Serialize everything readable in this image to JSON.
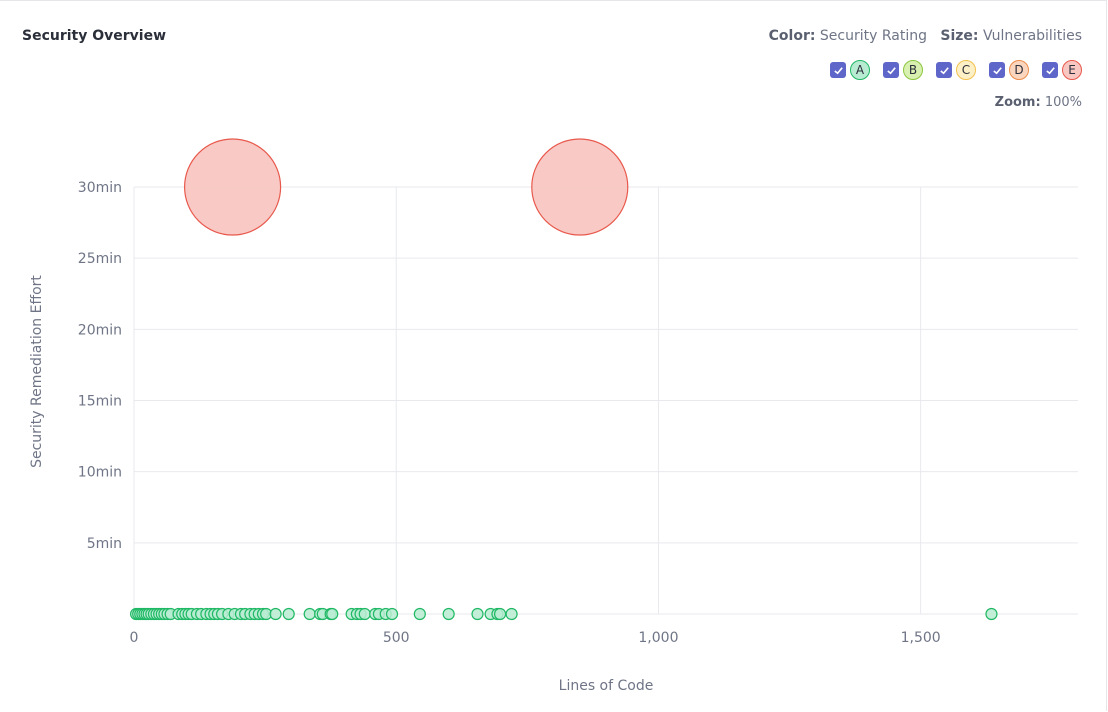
{
  "header": {
    "title": "Security Overview",
    "color_label": "Color:",
    "color_value": "Security Rating",
    "size_label": "Size:",
    "size_value": "Vulnerabilities",
    "zoom_label": "Zoom:",
    "zoom_value": "100%"
  },
  "ratings": [
    {
      "label": "A",
      "checked": true,
      "fill": "#b8ecd2",
      "stroke": "#1fb864"
    },
    {
      "label": "B",
      "checked": true,
      "fill": "#d8f0b0",
      "stroke": "#8cc63f"
    },
    {
      "label": "C",
      "checked": true,
      "fill": "#fdf0c6",
      "stroke": "#f2c14e"
    },
    {
      "label": "D",
      "checked": true,
      "fill": "#fbd6bf",
      "stroke": "#ec8d4a"
    },
    {
      "label": "E",
      "checked": true,
      "fill": "#f9c7c2",
      "stroke": "#e8584c"
    }
  ],
  "chart_data": {
    "type": "scatter",
    "title": "Security Overview",
    "xlabel": "Lines of Code",
    "ylabel": "Security Remediation Effort",
    "xlim": [
      0,
      1800
    ],
    "ylim": [
      0,
      30
    ],
    "xticks": [
      {
        "value": 0,
        "label": "0"
      },
      {
        "value": 500,
        "label": "500"
      },
      {
        "value": 1000,
        "label": "1,000"
      },
      {
        "value": 1500,
        "label": "1,500"
      }
    ],
    "yticks": [
      {
        "value": 5,
        "label": "5min"
      },
      {
        "value": 10,
        "label": "10min"
      },
      {
        "value": 15,
        "label": "15min"
      },
      {
        "value": 20,
        "label": "20min"
      },
      {
        "value": 25,
        "label": "25min"
      },
      {
        "value": 30,
        "label": "30min"
      }
    ],
    "grid": true,
    "series": [
      {
        "rating": "A",
        "color": "#1fb864",
        "fill": "#b8ecd2",
        "vulnerabilities": 0,
        "points": [
          {
            "x": 4,
            "y": 0
          },
          {
            "x": 8,
            "y": 0
          },
          {
            "x": 12,
            "y": 0
          },
          {
            "x": 16,
            "y": 0
          },
          {
            "x": 20,
            "y": 0
          },
          {
            "x": 24,
            "y": 0
          },
          {
            "x": 28,
            "y": 0
          },
          {
            "x": 33,
            "y": 0
          },
          {
            "x": 38,
            "y": 0
          },
          {
            "x": 43,
            "y": 0
          },
          {
            "x": 48,
            "y": 0
          },
          {
            "x": 53,
            "y": 0
          },
          {
            "x": 58,
            "y": 0
          },
          {
            "x": 64,
            "y": 0
          },
          {
            "x": 70,
            "y": 0
          },
          {
            "x": 85,
            "y": 0
          },
          {
            "x": 92,
            "y": 0
          },
          {
            "x": 98,
            "y": 0
          },
          {
            "x": 104,
            "y": 0
          },
          {
            "x": 110,
            "y": 0
          },
          {
            "x": 120,
            "y": 0
          },
          {
            "x": 128,
            "y": 0
          },
          {
            "x": 138,
            "y": 0
          },
          {
            "x": 146,
            "y": 0
          },
          {
            "x": 153,
            "y": 0
          },
          {
            "x": 160,
            "y": 0
          },
          {
            "x": 168,
            "y": 0
          },
          {
            "x": 180,
            "y": 0
          },
          {
            "x": 192,
            "y": 0
          },
          {
            "x": 204,
            "y": 0
          },
          {
            "x": 212,
            "y": 0
          },
          {
            "x": 222,
            "y": 0
          },
          {
            "x": 230,
            "y": 0
          },
          {
            "x": 238,
            "y": 0
          },
          {
            "x": 246,
            "y": 0
          },
          {
            "x": 252,
            "y": 0
          },
          {
            "x": 270,
            "y": 0
          },
          {
            "x": 295,
            "y": 0
          },
          {
            "x": 335,
            "y": 0
          },
          {
            "x": 355,
            "y": 0
          },
          {
            "x": 360,
            "y": 0
          },
          {
            "x": 375,
            "y": 0
          },
          {
            "x": 378,
            "y": 0
          },
          {
            "x": 415,
            "y": 0
          },
          {
            "x": 425,
            "y": 0
          },
          {
            "x": 432,
            "y": 0
          },
          {
            "x": 440,
            "y": 0
          },
          {
            "x": 460,
            "y": 0
          },
          {
            "x": 467,
            "y": 0
          },
          {
            "x": 480,
            "y": 0
          },
          {
            "x": 492,
            "y": 0
          },
          {
            "x": 545,
            "y": 0
          },
          {
            "x": 600,
            "y": 0
          },
          {
            "x": 655,
            "y": 0
          },
          {
            "x": 680,
            "y": 0
          },
          {
            "x": 693,
            "y": 0
          },
          {
            "x": 698,
            "y": 0
          },
          {
            "x": 720,
            "y": 0
          },
          {
            "x": 1635,
            "y": 0
          }
        ]
      },
      {
        "rating": "E",
        "color": "#e8584c",
        "fill": "#f9c7c2",
        "points": [
          {
            "x": 188,
            "y": 30,
            "vulnerabilities": 1
          },
          {
            "x": 850,
            "y": 30,
            "vulnerabilities": 1
          }
        ]
      }
    ]
  }
}
